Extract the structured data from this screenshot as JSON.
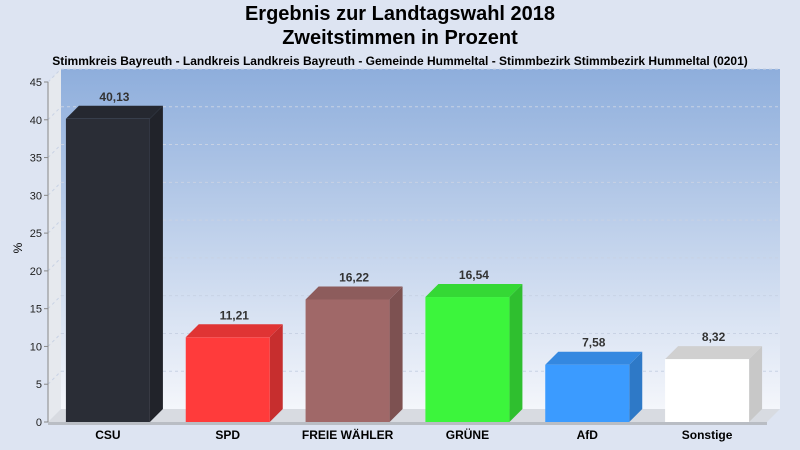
{
  "chart_data": {
    "type": "bar",
    "title": "Ergebnis zur Landtagswahl 2018",
    "subtitle": "Zweitstimmen in Prozent",
    "caption": "Stimmkreis Bayreuth - Landkreis Landkreis Bayreuth - Gemeinde Hummeltal - Stimmbezirk Stimmbezirk Hummeltal (0201)",
    "ylabel": "%",
    "ylim": [
      0,
      45
    ],
    "yticks": [
      0,
      5,
      10,
      15,
      20,
      25,
      30,
      35,
      40,
      45
    ],
    "grid": true,
    "categories": [
      "CSU",
      "SPD",
      "FREIE WÄHLER",
      "GRÜNE",
      "AfD",
      "Sonstige"
    ],
    "values": [
      40.13,
      11.21,
      16.22,
      16.54,
      7.58,
      8.32
    ],
    "value_labels": [
      "40,13",
      "11,21",
      "16,22",
      "16,54",
      "7,58",
      "8,32"
    ],
    "colors": [
      "#2a2d36",
      "#ff3b3b",
      "#a06868",
      "#3cf53c",
      "#3b9bff",
      "#ffffff"
    ]
  }
}
